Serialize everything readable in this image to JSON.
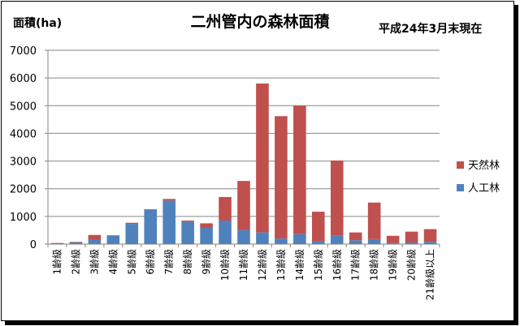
{
  "title": "二州管内の森林面積",
  "ylabel": "面積(ha)",
  "date_note": "平成24年3月末現在",
  "colors": {
    "natural": "#C0504D",
    "planted": "#4F81BD",
    "grid": "#868686",
    "axis": "#868686"
  },
  "chart_data": {
    "type": "bar",
    "stacked": true,
    "title": "二州管内の森林面積",
    "xlabel": "",
    "ylabel": "面積(ha)",
    "ylim": [
      0,
      7000
    ],
    "yticks": [
      0,
      1000,
      2000,
      3000,
      4000,
      5000,
      6000,
      7000
    ],
    "grid": true,
    "legend": "right",
    "categories": [
      "1齢級",
      "2齢級",
      "3齢級",
      "4齢級",
      "5齢級",
      "6齢級",
      "7齢級",
      "8齢級",
      "9齢級",
      "10齢級",
      "11齢級",
      "12齢級",
      "13齢級",
      "14齢級",
      "15齢級",
      "16齢級",
      "17齢級",
      "18齢級",
      "19齢級",
      "20齢級",
      "21齢級以上"
    ],
    "series": [
      {
        "name": "人工林",
        "values": [
          30,
          60,
          160,
          300,
          730,
          1240,
          1570,
          800,
          600,
          850,
          510,
          420,
          200,
          360,
          100,
          300,
          140,
          180,
          40,
          60,
          80
        ]
      },
      {
        "name": "天然林",
        "values": [
          10,
          20,
          170,
          20,
          40,
          20,
          60,
          50,
          150,
          850,
          1770,
          5380,
          4420,
          4640,
          1070,
          2720,
          280,
          1320,
          260,
          390,
          460
        ]
      }
    ],
    "legend_order": [
      "天然林",
      "人工林"
    ]
  }
}
